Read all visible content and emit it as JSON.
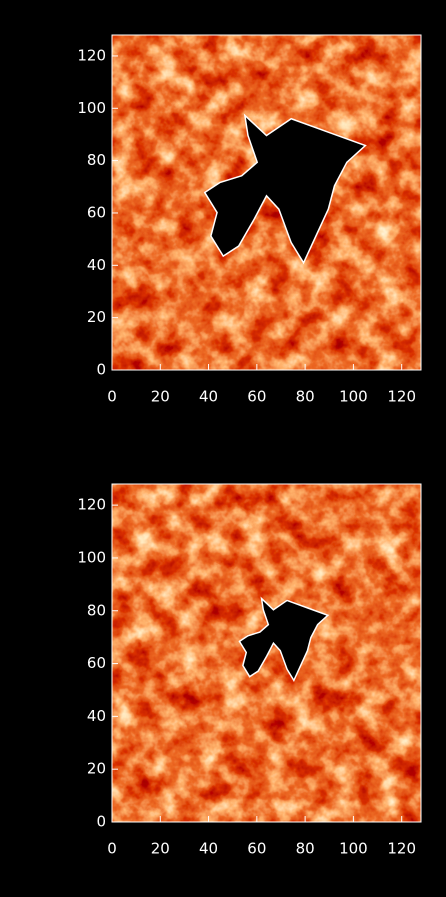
{
  "chart_data": [
    {
      "type": "heatmap",
      "xlim": [
        0,
        128
      ],
      "ylim": [
        0,
        128
      ],
      "xticks": [
        0,
        20,
        40,
        60,
        80,
        100,
        120
      ],
      "yticks": [
        0,
        20,
        40,
        60,
        80,
        100,
        120
      ]
    },
    {
      "type": "heatmap",
      "xlim": [
        0,
        128
      ],
      "ylim": [
        0,
        128
      ],
      "xticks": [
        0,
        20,
        40,
        60,
        80,
        100,
        120
      ],
      "yticks": [
        0,
        20,
        40,
        60,
        80,
        100,
        120
      ]
    }
  ]
}
